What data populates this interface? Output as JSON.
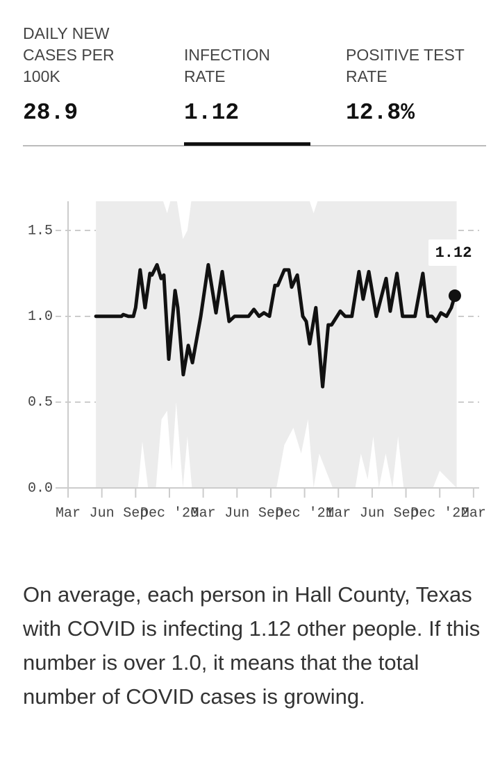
{
  "tabs": [
    {
      "label": "DAILY NEW CASES PER 100K",
      "value": "28.9"
    },
    {
      "label": "INFECTION RATE",
      "value": "1.12"
    },
    {
      "label": "POSITIVE TEST RATE",
      "value": "12.8%"
    }
  ],
  "active_tab": 1,
  "chart_data": {
    "type": "line",
    "x": [
      2.47,
      4.75,
      4.9,
      5.36,
      5.8,
      6.0,
      6.4,
      6.84,
      7.27,
      7.45,
      7.9,
      8.26,
      8.5,
      8.94,
      9.5,
      9.74,
      10.23,
      10.67,
      11.04,
      11.78,
      12.45,
      13.13,
      13.69,
      14.3,
      14.79,
      16.03,
      16.5,
      16.96,
      17.39,
      17.88,
      18.37,
      18.62,
      19.2,
      19.6,
      19.85,
      20.35,
      20.84,
      21.15,
      21.45,
      22.0,
      22.6,
      23.1,
      23.4,
      24.17,
      24.6,
      25.2,
      25.83,
      26.2,
      26.7,
      27.37,
      28.24,
      28.6,
      29.2,
      29.7,
      30.8,
      31.5,
      31.94,
      32.3,
      32.68,
      33.1,
      33.6,
      34.03,
      34.34
    ],
    "values": [
      1.0,
      1.0,
      1.01,
      1.0,
      1.0,
      1.05,
      1.27,
      1.05,
      1.25,
      1.24,
      1.3,
      1.22,
      1.24,
      0.75,
      1.15,
      1.05,
      0.66,
      0.83,
      0.73,
      1.0,
      1.3,
      1.02,
      1.26,
      0.97,
      1.0,
      1.0,
      1.04,
      1.0,
      1.02,
      1.0,
      1.18,
      1.18,
      1.27,
      1.27,
      1.17,
      1.24,
      1.0,
      0.97,
      0.84,
      1.05,
      0.59,
      0.95,
      0.95,
      1.03,
      1.0,
      1.0,
      1.26,
      1.1,
      1.26,
      1.0,
      1.22,
      1.03,
      1.25,
      1.0,
      1.0,
      1.25,
      1.0,
      1.0,
      0.97,
      1.02,
      1.0,
      1.05,
      1.12
    ],
    "color": "#111111",
    "band": {
      "x": [
        2.47,
        6.2,
        6.6,
        7.1,
        7.8,
        8.3,
        8.8,
        9.2,
        9.6,
        10.2,
        10.6,
        11.0,
        18.5,
        19.2,
        20.0,
        20.7,
        21.3,
        21.8,
        22.3,
        23.5,
        25.5,
        26.0,
        26.6,
        27.1,
        27.6,
        28.2,
        28.8,
        29.3,
        29.8,
        32.4,
        33.0,
        34.5
      ],
      "lower": [
        0,
        0,
        0.27,
        0,
        0,
        0.4,
        0.45,
        0.1,
        0.5,
        0,
        0.3,
        0,
        0,
        0.25,
        0.35,
        0.2,
        0.4,
        0,
        0.2,
        0,
        0,
        0.2,
        0.05,
        0.3,
        0,
        0.2,
        0,
        0.3,
        0,
        0,
        0.1,
        0
      ],
      "upper": [
        1.7,
        1.7,
        1.7,
        1.7,
        1.7,
        1.7,
        1.6,
        1.7,
        1.7,
        1.45,
        1.5,
        1.7,
        1.7,
        1.7,
        1.7,
        1.7,
        1.7,
        1.6,
        1.7,
        1.7,
        1.7,
        1.7,
        1.7,
        1.7,
        1.7,
        1.7,
        1.7,
        1.7,
        1.7,
        1.7,
        1.7,
        1.7
      ],
      "color": "#ececec"
    },
    "xlim": [
      0,
      36.5
    ],
    "xticks": [
      {
        "value": 0,
        "label": "Mar"
      },
      {
        "value": 3,
        "label": "Jun"
      },
      {
        "value": 6,
        "label": "Sep"
      },
      {
        "value": 9,
        "label": "Dec '20"
      },
      {
        "value": 12,
        "label": "Mar"
      },
      {
        "value": 15,
        "label": "Jun"
      },
      {
        "value": 18,
        "label": "Sep"
      },
      {
        "value": 21,
        "label": "Dec '21"
      },
      {
        "value": 24,
        "label": "Mar"
      },
      {
        "value": 27,
        "label": "Jun"
      },
      {
        "value": 30,
        "label": "Sep"
      },
      {
        "value": 33,
        "label": "Dec '22"
      },
      {
        "value": 36,
        "label": "Mar"
      }
    ],
    "ylim": [
      0,
      1.67
    ],
    "yticks": [
      {
        "value": 0,
        "label": "0.0"
      },
      {
        "value": 0.5,
        "label": "0.5"
      },
      {
        "value": 1,
        "label": "1.0"
      },
      {
        "value": 1.5,
        "label": "1.5"
      }
    ],
    "grid": true,
    "annotation": "1.12"
  },
  "description": "On average, each person in Hall County, Texas with COVID is infecting 1.12 other people. If this number is over 1.0, it means that the total number of COVID cases is growing."
}
